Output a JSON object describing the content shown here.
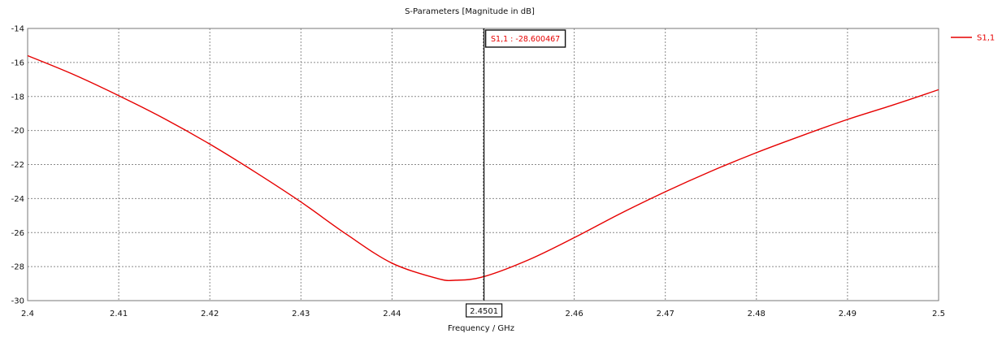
{
  "chart_data": {
    "type": "line",
    "title": "S-Parameters [Magnitude in dB]",
    "xlabel": "Frequency / GHz",
    "ylabel": "",
    "xlim": [
      2.4,
      2.5
    ],
    "ylim": [
      -30,
      -14
    ],
    "x_ticks": [
      "2.4",
      "2.41",
      "2.42",
      "2.43",
      "2.44",
      "2.45",
      "2.46",
      "2.47",
      "2.48",
      "2.49",
      "2.5"
    ],
    "y_ticks": [
      "-14",
      "-16",
      "-18",
      "-20",
      "-22",
      "-24",
      "-26",
      "-28",
      "-30"
    ],
    "grid": true,
    "legend_position": "top-right",
    "series": [
      {
        "name": "S1,1",
        "color": "#e60000",
        "x": [
          2.4,
          2.405,
          2.41,
          2.415,
          2.42,
          2.425,
          2.43,
          2.435,
          2.44,
          2.445,
          2.447,
          2.45,
          2.455,
          2.46,
          2.465,
          2.47,
          2.475,
          2.48,
          2.485,
          2.49,
          2.495,
          2.5
        ],
        "y": [
          -15.6,
          -16.7,
          -17.95,
          -19.3,
          -20.8,
          -22.45,
          -24.2,
          -26.1,
          -27.8,
          -28.7,
          -28.8,
          -28.6,
          -27.6,
          -26.3,
          -24.9,
          -23.6,
          -22.4,
          -21.3,
          -20.3,
          -19.35,
          -18.5,
          -17.6
        ]
      }
    ],
    "marker": {
      "x": 2.4501,
      "x_label": "2.4501",
      "label": "S1,1 : -28.600467"
    }
  }
}
